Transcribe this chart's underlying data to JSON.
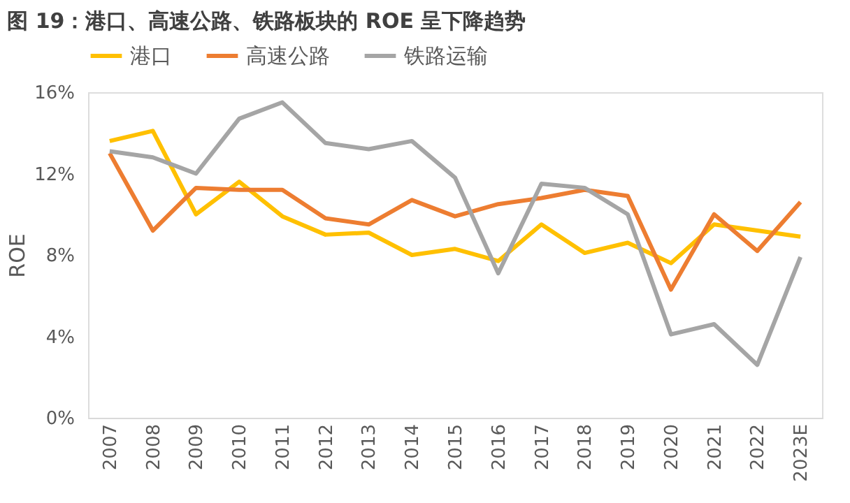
{
  "chart_data": {
    "type": "line",
    "title": "图 19：港口、高速公路、铁路板块的 ROE 呈下降趋势",
    "ylabel": "ROE",
    "categories": [
      "2007",
      "2008",
      "2009",
      "2010",
      "2011",
      "2012",
      "2013",
      "2014",
      "2015",
      "2016",
      "2017",
      "2018",
      "2019",
      "2020",
      "2021",
      "2022",
      "2023E"
    ],
    "series": [
      {
        "name": "港口",
        "color": "#ffc000",
        "values": [
          13.6,
          14.1,
          10.0,
          11.6,
          9.9,
          9.0,
          9.1,
          8.0,
          8.3,
          7.7,
          9.5,
          8.1,
          8.6,
          7.6,
          9.5,
          9.2,
          8.9
        ]
      },
      {
        "name": "高速公路",
        "color": "#ed7d31",
        "values": [
          13.0,
          9.2,
          11.3,
          11.2,
          11.2,
          9.8,
          9.5,
          10.7,
          9.9,
          10.5,
          10.8,
          11.2,
          10.9,
          6.3,
          10.0,
          8.2,
          10.6
        ]
      },
      {
        "name": "铁路运输",
        "color": "#a5a5a5",
        "values": [
          13.1,
          12.8,
          12.0,
          14.7,
          15.5,
          13.5,
          13.2,
          13.6,
          11.8,
          7.1,
          11.5,
          11.3,
          10.0,
          4.1,
          4.6,
          2.6,
          7.9
        ]
      }
    ],
    "ylim": [
      0,
      16
    ],
    "yticks": [
      {
        "value": 0,
        "label": "0%"
      },
      {
        "value": 4,
        "label": "4%"
      },
      {
        "value": 8,
        "label": "8%"
      },
      {
        "value": 12,
        "label": "12%"
      },
      {
        "value": 16,
        "label": "16%"
      }
    ],
    "grid": false,
    "legend": "top",
    "marker": "none",
    "line_style": "solid"
  }
}
